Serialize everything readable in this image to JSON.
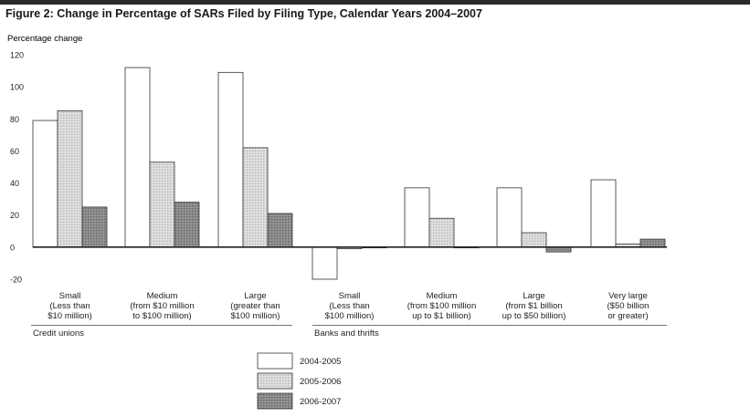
{
  "title": "Figure 2: Change in Percentage of SARs Filed by Filing Type, Calendar Years 2004–2007",
  "chart_data": {
    "type": "bar",
    "ylabel": "Percentage change",
    "ylim": [
      -20,
      120
    ],
    "yticks": [
      "120",
      "100",
      "80",
      "60",
      "40",
      "20",
      "0",
      "-20"
    ],
    "grid": false,
    "legend_position": "bottom-center",
    "groups": [
      {
        "name": "Credit unions",
        "categories": [
          [
            "Small",
            "(Less than",
            "$10 million)"
          ],
          [
            "Medium",
            "(from $10 million",
            "to $100 million)"
          ],
          [
            "Large",
            "(greater than",
            "$100 million)"
          ]
        ]
      },
      {
        "name": "Banks and thrifts",
        "categories": [
          [
            "Small",
            "(Less than",
            "$100 million)"
          ],
          [
            "Medium",
            "(from $100 million",
            "up to $1 billion)"
          ],
          [
            "Large",
            "(from $1 billion",
            "up to $50 billion)"
          ],
          [
            "Very large",
            "($50 billion",
            "or greater)"
          ]
        ]
      }
    ],
    "series": [
      {
        "name": "2004-2005",
        "color": "#ffffff",
        "values": [
          79,
          112,
          109,
          -20,
          37,
          37,
          42
        ]
      },
      {
        "name": "2005-2006",
        "color": "#d8d8d8",
        "values": [
          85,
          53,
          62,
          -1,
          18,
          9,
          2
        ]
      },
      {
        "name": "2006-2007",
        "color": "#8a8a8a",
        "values": [
          25,
          28,
          21,
          0,
          0,
          -3,
          5
        ]
      }
    ]
  }
}
